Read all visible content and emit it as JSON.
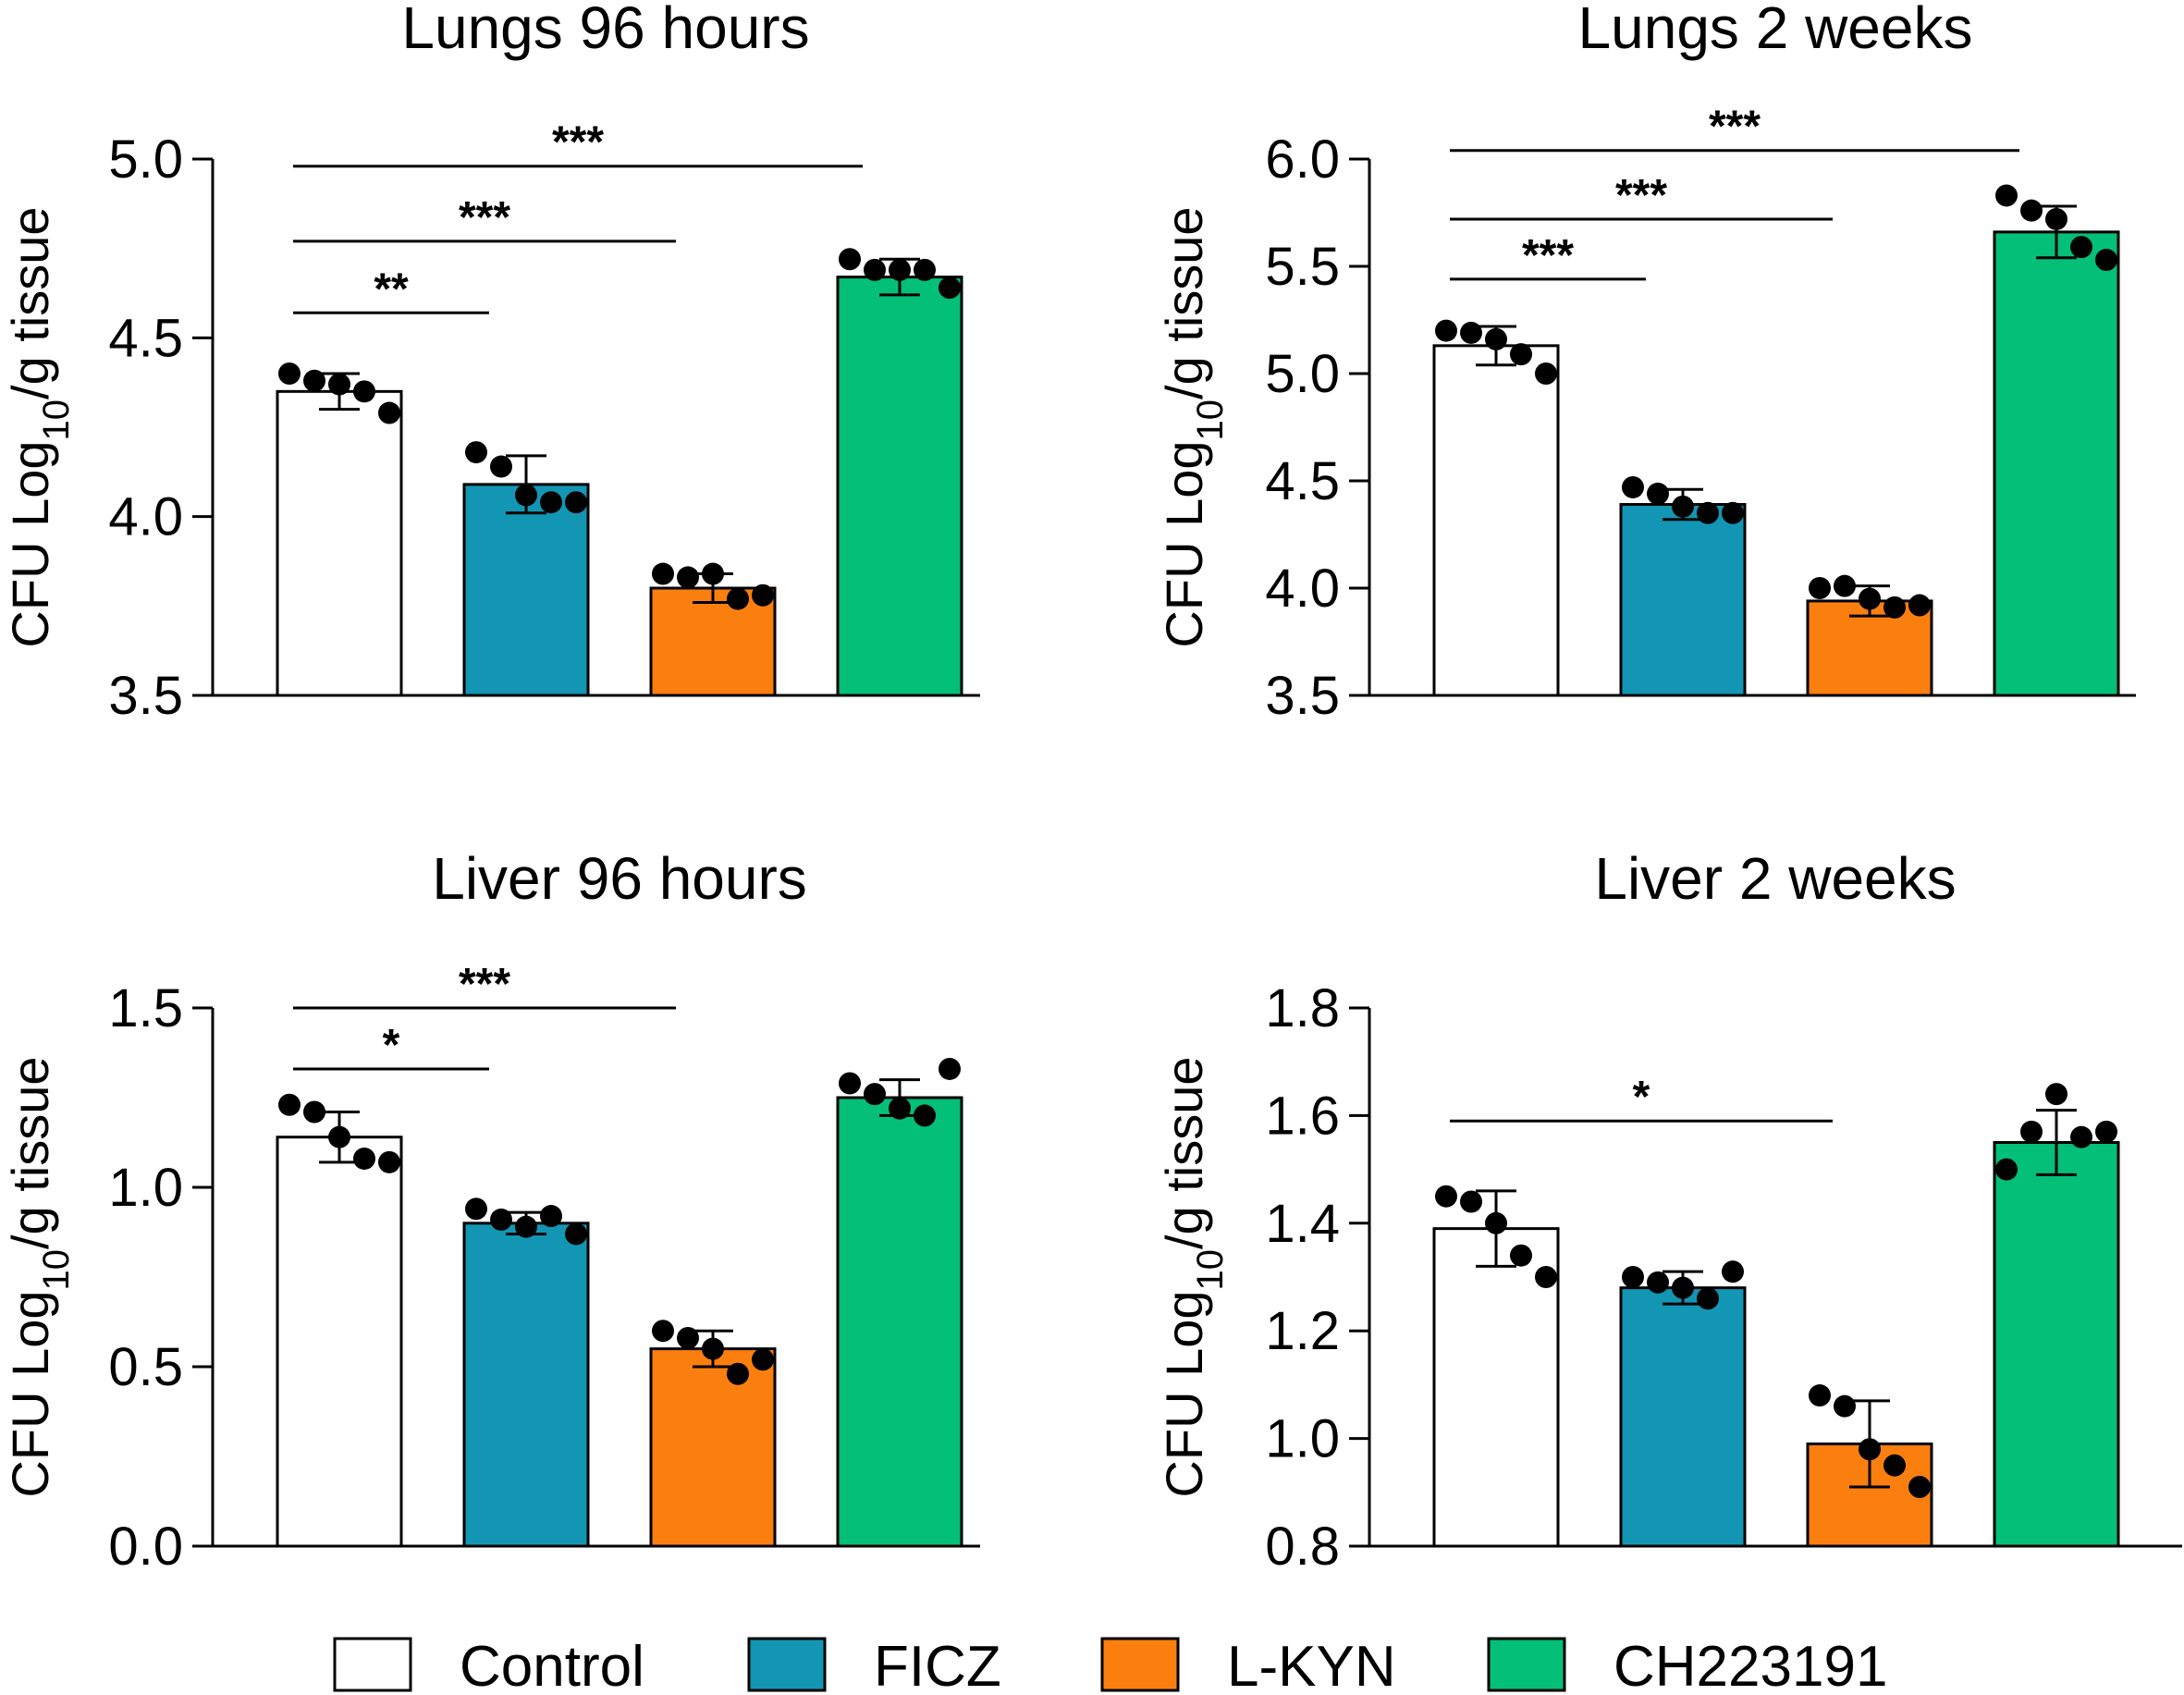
{
  "colors": {
    "Control": "#ffffff",
    "FICZ": "#1396b4",
    "L-KYN": "#fb7f0e",
    "CH223191": "#04bf78",
    "axis": "#000000"
  },
  "legend": [
    {
      "label": "Control",
      "color": "#ffffff"
    },
    {
      "label": "FICZ",
      "color": "#1396b4"
    },
    {
      "label": "L-KYN",
      "color": "#fb7f0e"
    },
    {
      "label": "CH223191",
      "color": "#04bf78"
    }
  ],
  "chart_data": [
    {
      "type": "bar",
      "title": "Lungs 96 hours",
      "ylabel_main": "CFU Log",
      "ylabel_sub": "10",
      "ylabel_tail": "/g tissue",
      "categories": [
        "Control",
        "FICZ",
        "L-KYN",
        "CH223191"
      ],
      "means": [
        4.35,
        4.09,
        3.8,
        4.67
      ],
      "sd": [
        0.05,
        0.08,
        0.04,
        0.05
      ],
      "points": [
        [
          4.4,
          4.38,
          4.37,
          4.35,
          4.29
        ],
        [
          4.18,
          4.14,
          4.06,
          4.04,
          4.04
        ],
        [
          3.84,
          3.83,
          3.84,
          3.77,
          3.78
        ],
        [
          4.72,
          4.69,
          4.69,
          4.69,
          4.64
        ]
      ],
      "ylim": [
        3.5,
        5.0
      ],
      "yticks": [
        3.5,
        4.0,
        4.5,
        5.0
      ],
      "tick_labels": [
        "3.5",
        "4.0",
        "4.5",
        "5.0"
      ],
      "significance": [
        {
          "from": 0,
          "to": 1,
          "label": "**",
          "y": 4.57
        },
        {
          "from": 0,
          "to": 2,
          "label": "***",
          "y": 4.77
        },
        {
          "from": 0,
          "to": 3,
          "label": "***",
          "y": 4.98
        }
      ]
    },
    {
      "type": "bar",
      "title": "Lungs 2 weeks",
      "ylabel_main": "CFU Log",
      "ylabel_sub": "10",
      "ylabel_tail": "/g tissue",
      "categories": [
        "Control",
        "FICZ",
        "L-KYN",
        "CH223191"
      ],
      "means": [
        5.13,
        4.39,
        3.94,
        5.66
      ],
      "sd": [
        0.09,
        0.07,
        0.07,
        0.12
      ],
      "points": [
        [
          5.2,
          5.19,
          5.16,
          5.09,
          5.0
        ],
        [
          4.47,
          4.44,
          4.38,
          4.35,
          4.35
        ],
        [
          4.0,
          4.01,
          3.95,
          3.91,
          3.92
        ],
        [
          5.83,
          5.76,
          5.72,
          5.59,
          5.53
        ]
      ],
      "ylim": [
        3.5,
        6.0
      ],
      "yticks": [
        3.5,
        4.0,
        4.5,
        5.0,
        5.5,
        6.0
      ],
      "tick_labels": [
        "3.5",
        "4.0",
        "4.5",
        "5.0",
        "5.5",
        "6.0"
      ],
      "significance": [
        {
          "from": 0,
          "to": 1,
          "label": "***",
          "y": 5.44
        },
        {
          "from": 0,
          "to": 2,
          "label": "***",
          "y": 5.72
        },
        {
          "from": 0,
          "to": 3,
          "label": "***",
          "y": 6.04
        }
      ]
    },
    {
      "type": "bar",
      "title": "Liver 96 hours",
      "ylabel_main": "CFU Log",
      "ylabel_sub": "10",
      "ylabel_tail": "/g tissue",
      "categories": [
        "Control",
        "FICZ",
        "L-KYN",
        "CH223191"
      ],
      "means": [
        1.14,
        0.9,
        0.55,
        1.25
      ],
      "sd": [
        0.07,
        0.03,
        0.05,
        0.05
      ],
      "points": [
        [
          1.23,
          1.21,
          1.14,
          1.08,
          1.07
        ],
        [
          0.94,
          0.91,
          0.89,
          0.92,
          0.87
        ],
        [
          0.6,
          0.58,
          0.55,
          0.48,
          0.52
        ],
        [
          1.29,
          1.26,
          1.22,
          1.2,
          1.33
        ]
      ],
      "ylim": [
        0.0,
        1.5
      ],
      "yticks": [
        0.0,
        0.5,
        1.0,
        1.5
      ],
      "tick_labels": [
        "0.0",
        "0.5",
        "1.0",
        "1.5"
      ],
      "significance": [
        {
          "from": 0,
          "to": 1,
          "label": "*",
          "y": 1.33
        },
        {
          "from": 0,
          "to": 2,
          "label": "***",
          "y": 1.5
        }
      ]
    },
    {
      "type": "bar",
      "title": "Liver 2 weeks",
      "ylabel_main": "CFU Log",
      "ylabel_sub": "10",
      "ylabel_tail": "/g tissue",
      "categories": [
        "Control",
        "FICZ",
        "L-KYN",
        "CH223191"
      ],
      "means": [
        1.39,
        1.28,
        0.99,
        1.55
      ],
      "sd": [
        0.07,
        0.03,
        0.08,
        0.06
      ],
      "points": [
        [
          1.45,
          1.44,
          1.4,
          1.34,
          1.3
        ],
        [
          1.3,
          1.29,
          1.28,
          1.26,
          1.31
        ],
        [
          1.08,
          1.06,
          0.98,
          0.95,
          0.91
        ],
        [
          1.5,
          1.57,
          1.64,
          1.56,
          1.57
        ]
      ],
      "ylim": [
        0.8,
        1.8
      ],
      "yticks": [
        0.8,
        1.0,
        1.2,
        1.4,
        1.6,
        1.8
      ],
      "tick_labels": [
        "0.8",
        "1.0",
        "1.2",
        "1.4",
        "1.6",
        "1.8"
      ],
      "significance": [
        {
          "from": 0,
          "to": 2,
          "label": "*",
          "y": 1.59
        }
      ]
    }
  ]
}
